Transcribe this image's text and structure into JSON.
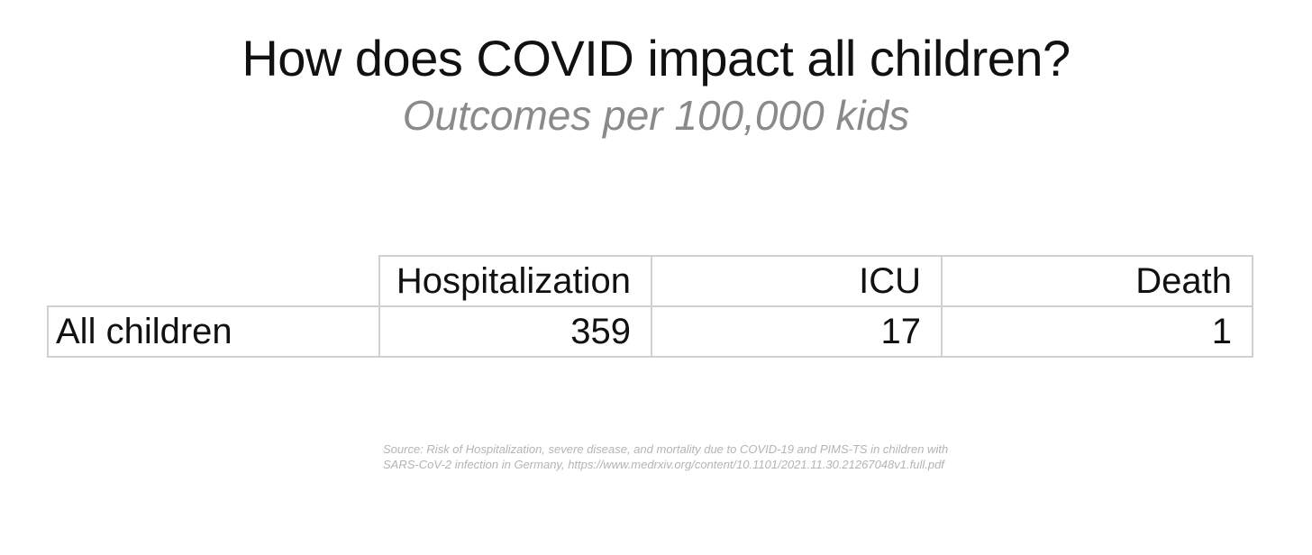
{
  "chart_data": {
    "type": "table",
    "title": "How does COVID impact all children?",
    "subtitle": "Outcomes per 100,000 kids",
    "columns": [
      "Hospitalization",
      "ICU",
      "Death"
    ],
    "rows": [
      {
        "label": "All children",
        "values": [
          "359",
          "17",
          "1"
        ]
      }
    ],
    "source_lines": [
      "Source: Risk of Hospitalization, severe disease, and mortality due to COVID-19 and PIMS-TS in children with",
      "SARS-CoV-2 infection in Germany, https://www.medrxiv.org/content/10.1101/2021.11.30.21267048v1.full.pdf"
    ]
  }
}
